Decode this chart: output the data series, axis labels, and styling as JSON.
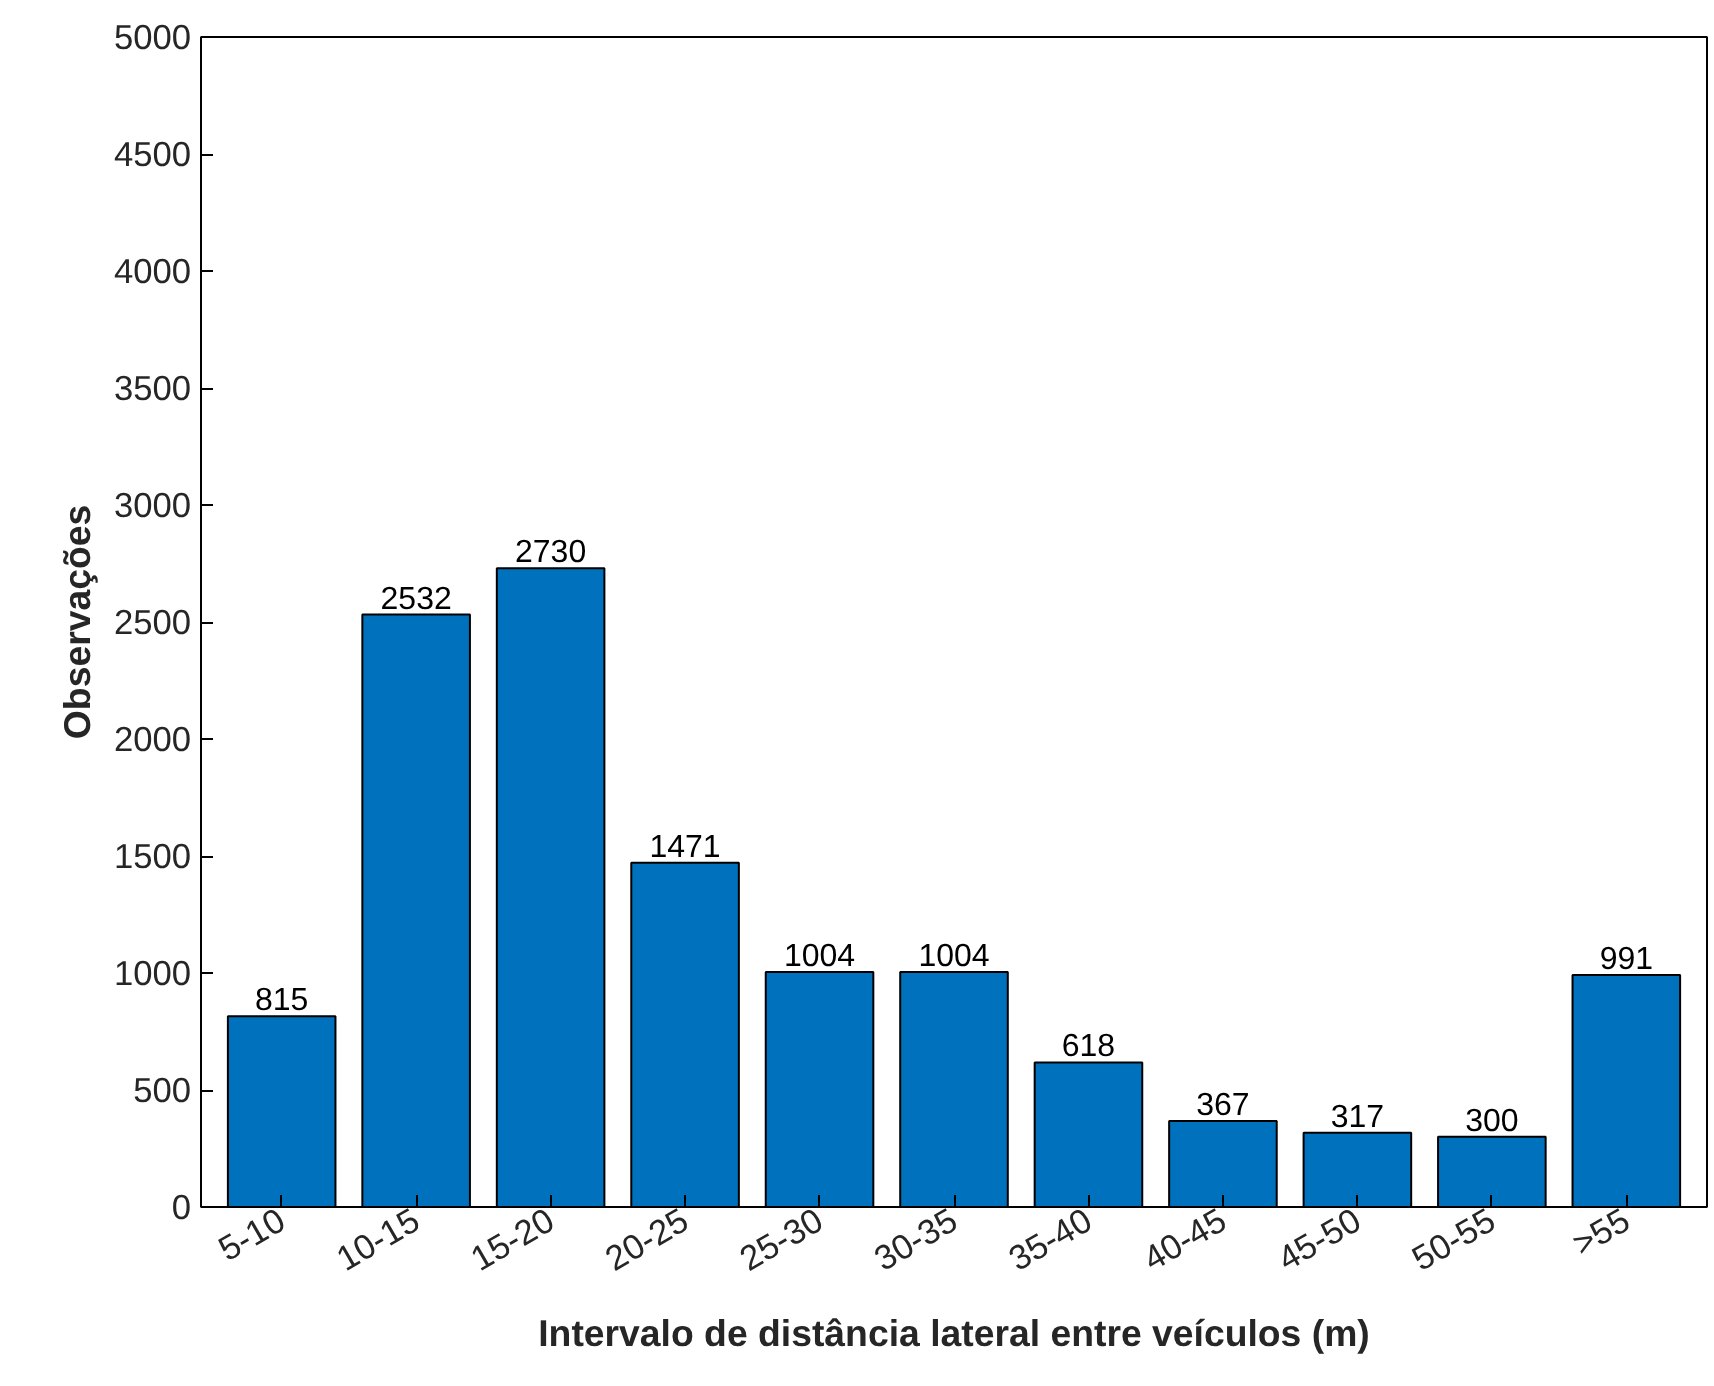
{
  "chart_data": {
    "type": "bar",
    "xlabel": "Intervalo de distância lateral entre veículos (m)",
    "ylabel": "Observações",
    "categories": [
      "5-10",
      "10-15",
      "15-20",
      "20-25",
      "25-30",
      "30-35",
      "35-40",
      "40-45",
      "45-50",
      "50-55",
      ">55"
    ],
    "values": [
      815,
      2532,
      2730,
      1471,
      1004,
      1004,
      618,
      367,
      317,
      300,
      991
    ],
    "color": "#0072bd",
    "ylim": [
      0,
      5000
    ],
    "yticks": [
      0,
      500,
      1000,
      1500,
      2000,
      2500,
      3000,
      3500,
      4000,
      4500,
      5000
    ],
    "data_labels": true,
    "grid": false
  }
}
